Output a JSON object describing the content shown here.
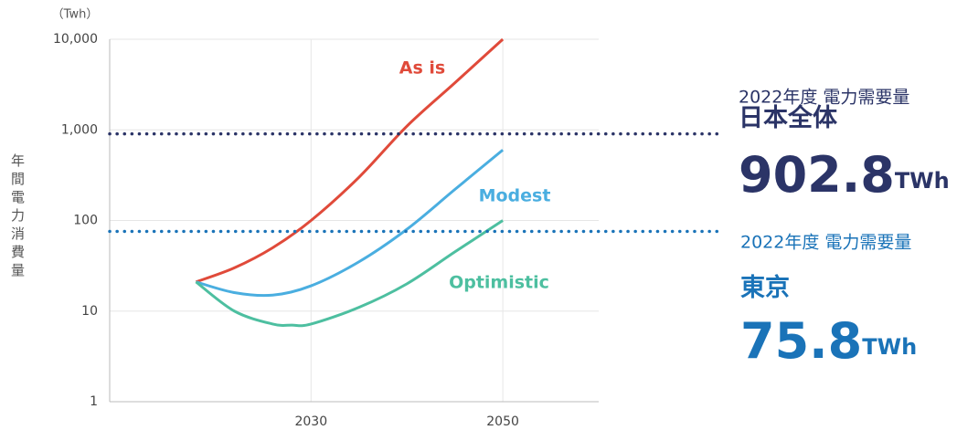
{
  "chart_data": {
    "type": "line",
    "y_unit": "（Twh）",
    "y_label": "年間電力消費量",
    "log_y": true,
    "grid": true,
    "xlim": [
      2009,
      2060
    ],
    "xticks": [
      2030,
      2050
    ],
    "ylim": [
      1,
      10000
    ],
    "yticks": [
      1,
      10,
      100,
      {
        "value": 1000,
        "label": "1,000"
      },
      {
        "value": 10000,
        "label": "10,000"
      }
    ],
    "series": [
      {
        "name": "As is",
        "color": "#e04a3a",
        "x": [
          2018,
          2022,
          2026,
          2030,
          2035,
          2040,
          2045,
          2050
        ],
        "values": [
          21,
          30,
          50,
          100,
          300,
          1100,
          3300,
          10000
        ]
      },
      {
        "name": "Modest",
        "color": "#4aaee0",
        "x": [
          2018,
          2022,
          2026,
          2030,
          2035,
          2040,
          2045,
          2050
        ],
        "values": [
          21,
          16,
          15,
          19,
          35,
          80,
          220,
          600
        ]
      },
      {
        "name": "Optimistic",
        "color": "#4dbfa0",
        "x": [
          2018,
          2022,
          2026,
          2028,
          2030,
          2035,
          2040,
          2045,
          2050
        ],
        "values": [
          21,
          10,
          7.2,
          7,
          7.2,
          11,
          20,
          45,
          100
        ]
      }
    ],
    "reference_lines": [
      {
        "subtitle": "2022年度  電力需要量",
        "region": "日本全体",
        "value": 902.8,
        "unit": "TWh",
        "color": "#2b3467"
      },
      {
        "subtitle": "2022年度  電力需要量",
        "region": "東京",
        "value": 75.8,
        "unit": "TWh",
        "color": "#1a73b8"
      }
    ]
  }
}
